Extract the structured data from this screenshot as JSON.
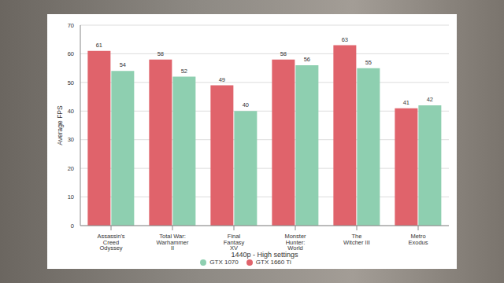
{
  "chart_data": {
    "type": "bar",
    "x_label": "1440p - High settings",
    "y_label": "Average FPS",
    "categories": [
      "Assassin's Creed Odyssey",
      "Total War: Warhammer II",
      "Final Fantasy XV",
      "Monster Hunter: World",
      "The Witcher III",
      "Metro Exodus"
    ],
    "series": [
      {
        "name": "GTX 1660 Ti",
        "color": "#e0636b",
        "values": [
          61,
          58,
          49,
          58,
          63,
          41
        ]
      },
      {
        "name": "GTX 1070",
        "color": "#8ecfb0",
        "values": [
          54,
          52,
          40,
          56,
          55,
          42
        ]
      }
    ],
    "ylim": [
      0,
      70
    ],
    "yticks": [
      0,
      10,
      20,
      30,
      40,
      50,
      60,
      70
    ],
    "grid": true,
    "legend": "bottom",
    "data_labels": true
  }
}
